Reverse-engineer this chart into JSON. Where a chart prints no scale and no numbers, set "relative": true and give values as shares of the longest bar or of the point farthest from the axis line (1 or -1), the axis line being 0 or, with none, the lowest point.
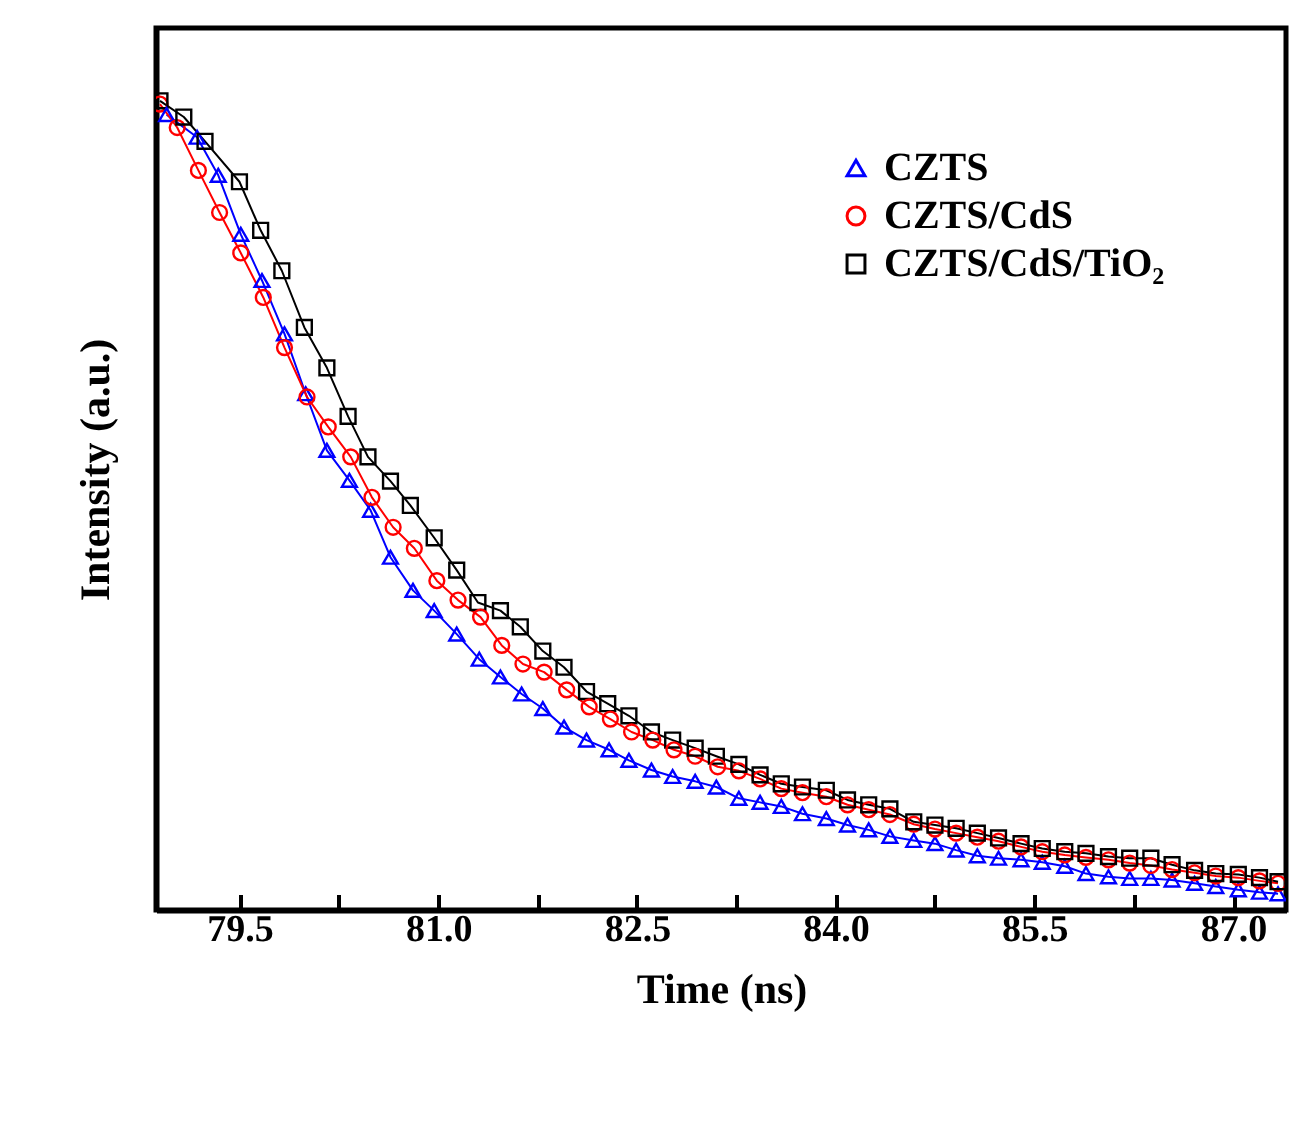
{
  "chart_data": {
    "type": "line",
    "xlabel": "Time (ns)",
    "ylabel": "Intensity (a.u.)",
    "relative": true,
    "xlim": [
      78.87,
      87.4
    ],
    "xticks": [
      {
        "value": 79.5,
        "label": "79.5"
      },
      {
        "value": 80.25,
        "label": null
      },
      {
        "value": 81,
        "label": "81.0"
      },
      {
        "value": 81.75,
        "label": null
      },
      {
        "value": 82.5,
        "label": "82.5"
      },
      {
        "value": 83.25,
        "label": null
      },
      {
        "value": 84,
        "label": "84.0"
      },
      {
        "value": 84.75,
        "label": null
      },
      {
        "value": 85.5,
        "label": "85.5"
      },
      {
        "value": 86.25,
        "label": null
      },
      {
        "value": 87,
        "label": "87.0"
      }
    ],
    "legend": "top right",
    "grid": false,
    "series": [
      {
        "name": "CZTS",
        "color": "#0000ff",
        "marker": "triangle",
        "x": [
          78.95,
          79.18,
          79.34,
          79.51,
          79.67,
          79.84,
          80.0,
          80.16,
          80.33,
          80.49,
          80.64,
          80.81,
          80.97,
          81.14,
          81.31,
          81.47,
          81.63,
          81.79,
          81.95,
          82.12,
          82.29,
          82.44,
          82.61,
          82.77,
          82.94,
          83.1,
          83.27,
          83.43,
          83.59,
          83.75,
          83.93,
          84.09,
          84.25,
          84.41,
          84.59,
          84.75,
          84.91,
          85.07,
          85.23,
          85.4,
          85.56,
          85.73,
          85.89,
          86.06,
          86.22,
          86.38,
          86.54,
          86.71,
          86.87,
          87.04,
          87.2,
          87.34
        ],
        "values": [
          0.983,
          0.955,
          0.908,
          0.835,
          0.778,
          0.712,
          0.638,
          0.568,
          0.531,
          0.494,
          0.436,
          0.395,
          0.37,
          0.341,
          0.31,
          0.288,
          0.267,
          0.249,
          0.226,
          0.21,
          0.198,
          0.185,
          0.173,
          0.165,
          0.159,
          0.152,
          0.138,
          0.133,
          0.128,
          0.119,
          0.113,
          0.105,
          0.099,
          0.091,
          0.086,
          0.082,
          0.074,
          0.067,
          0.064,
          0.062,
          0.059,
          0.054,
          0.045,
          0.041,
          0.039,
          0.039,
          0.037,
          0.033,
          0.029,
          0.025,
          0.022,
          0.02
        ]
      },
      {
        "name": "CZTS/CdS",
        "color": "#ff0000",
        "marker": "circle",
        "x": [
          78.9,
          79.03,
          79.19,
          79.35,
          79.51,
          79.68,
          79.84,
          80.01,
          80.17,
          80.34,
          80.5,
          80.66,
          80.82,
          80.99,
          81.15,
          81.32,
          81.48,
          81.64,
          81.8,
          81.97,
          82.14,
          82.3,
          82.46,
          82.62,
          82.78,
          82.94,
          83.11,
          83.27,
          83.43,
          83.59,
          83.75,
          83.93,
          84.09,
          84.25,
          84.41,
          84.59,
          84.75,
          84.91,
          85.07,
          85.23,
          85.4,
          85.56,
          85.73,
          85.89,
          86.06,
          86.22,
          86.38,
          86.54,
          86.71,
          86.87,
          87.04,
          87.2,
          87.34
        ],
        "values": [
          0.996,
          0.967,
          0.914,
          0.862,
          0.812,
          0.757,
          0.695,
          0.634,
          0.597,
          0.56,
          0.51,
          0.473,
          0.447,
          0.407,
          0.383,
          0.362,
          0.327,
          0.304,
          0.294,
          0.272,
          0.251,
          0.236,
          0.22,
          0.21,
          0.198,
          0.19,
          0.177,
          0.172,
          0.162,
          0.15,
          0.145,
          0.14,
          0.13,
          0.124,
          0.118,
          0.106,
          0.1,
          0.095,
          0.09,
          0.085,
          0.078,
          0.072,
          0.068,
          0.065,
          0.062,
          0.058,
          0.055,
          0.05,
          0.046,
          0.042,
          0.04,
          0.036,
          0.033
        ]
      },
      {
        "name": "CZTS/CdS/TiO₂",
        "color": "#000000",
        "marker": "square",
        "x": [
          78.9,
          79.08,
          79.24,
          79.5,
          79.66,
          79.82,
          79.99,
          80.16,
          80.32,
          80.47,
          80.64,
          80.79,
          80.97,
          81.14,
          81.3,
          81.47,
          81.62,
          81.79,
          81.95,
          82.12,
          82.28,
          82.44,
          82.61,
          82.77,
          82.94,
          83.1,
          83.27,
          83.43,
          83.59,
          83.75,
          83.93,
          84.09,
          84.25,
          84.41,
          84.59,
          84.75,
          84.91,
          85.07,
          85.23,
          85.4,
          85.56,
          85.73,
          85.89,
          86.06,
          86.22,
          86.38,
          86.54,
          86.71,
          86.87,
          87.04,
          87.2,
          87.34
        ],
        "values": [
          1.0,
          0.98,
          0.95,
          0.9,
          0.84,
          0.79,
          0.72,
          0.67,
          0.61,
          0.56,
          0.53,
          0.5,
          0.46,
          0.42,
          0.38,
          0.37,
          0.35,
          0.32,
          0.3,
          0.27,
          0.255,
          0.24,
          0.22,
          0.21,
          0.2,
          0.19,
          0.18,
          0.167,
          0.156,
          0.152,
          0.148,
          0.136,
          0.13,
          0.125,
          0.109,
          0.105,
          0.101,
          0.095,
          0.089,
          0.082,
          0.076,
          0.072,
          0.07,
          0.066,
          0.064,
          0.064,
          0.056,
          0.049,
          0.045,
          0.044,
          0.04,
          0.035
        ]
      }
    ]
  }
}
